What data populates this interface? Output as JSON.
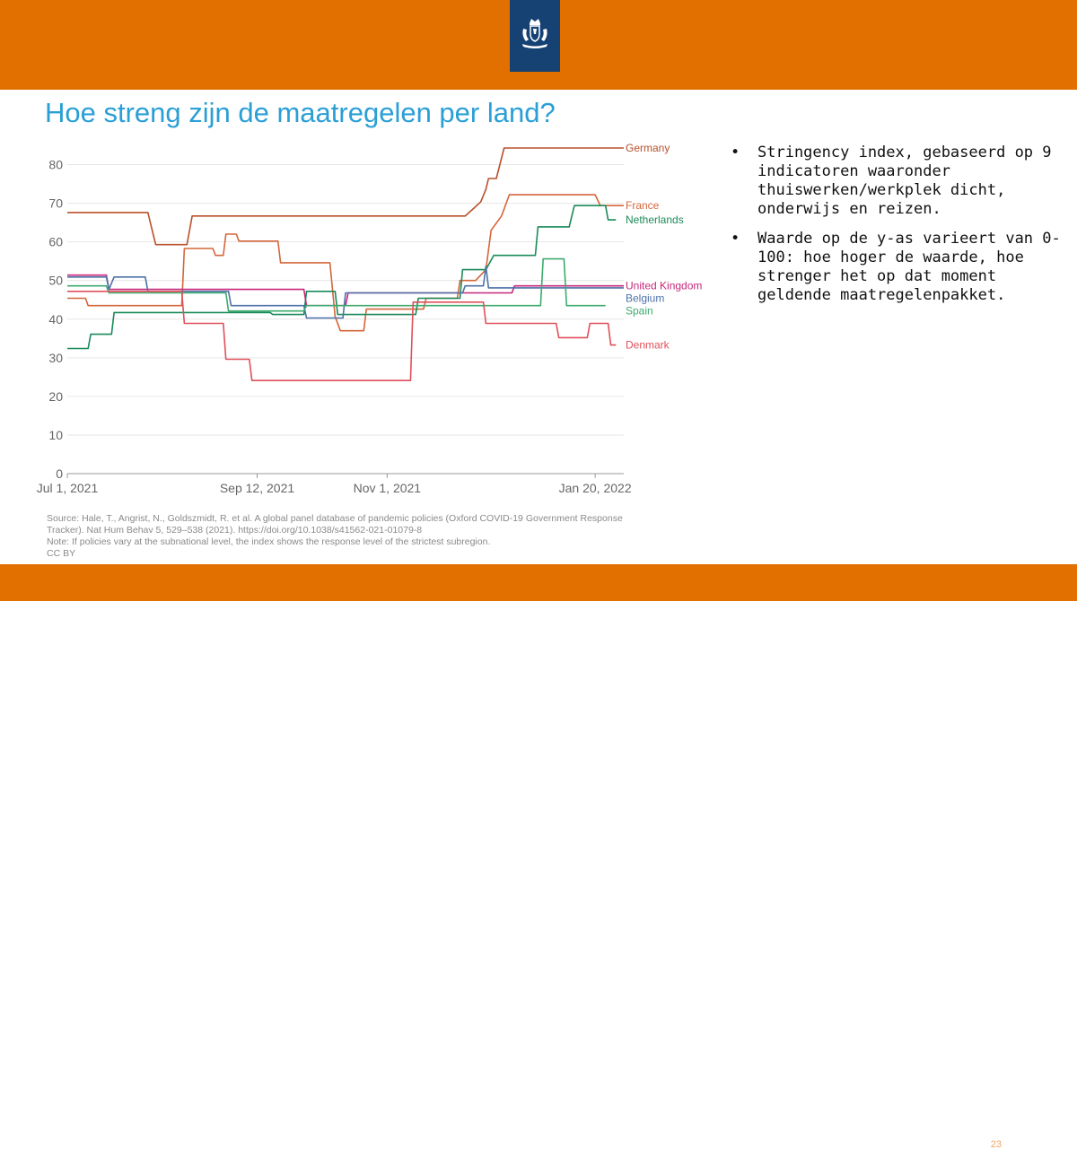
{
  "slide": {
    "title": "Hoe streng zijn de maatregelen per land?",
    "page_number": "23"
  },
  "bullets": [
    {
      "marker": "•",
      "text": "Stringency index, gebaseerd op 9 indicatoren waaronder thuiswerken/werkplek dicht, onderwijs en reizen."
    },
    {
      "marker": "•",
      "text": "Waarde op de y-as varieert van 0-100: hoe hoger de waarde, hoe strenger het op dat moment geldende maatregelenpakket."
    }
  ],
  "source": {
    "lines": [
      "Source: Hale, T., Angrist, N., Goldszmidt, R. et al. A global panel database of pandemic policies (Oxford COVID-19 Government Response",
      "Tracker). Nat Hum Behav 5, 529–538 (2021). https://doi.org/10.1038/s41562-021-01079-8",
      "Note: If policies vary at the subnational level, the index shows the response level of the strictest subregion.",
      "CC BY"
    ]
  },
  "colors": {
    "header_band": "#e27000",
    "logo_background": "#154273",
    "title": "#2a9fd6"
  },
  "icons": {
    "logo": "coat-of-arms-icon"
  },
  "chart_data": {
    "type": "line",
    "title": "",
    "xlabel": "",
    "ylabel": "",
    "x_start": "2021-07-01",
    "x_end": "2022-01-31",
    "ylim": [
      0,
      85
    ],
    "yticks": [
      0,
      10,
      20,
      30,
      40,
      50,
      60,
      70,
      80
    ],
    "xticks": [
      {
        "label": "Jul 1, 2021",
        "date": "2021-07-01"
      },
      {
        "label": "Sep 12, 2021",
        "date": "2021-09-12"
      },
      {
        "label": "Nov 1, 2021",
        "date": "2021-11-01"
      },
      {
        "label": "Jan 20, 2022",
        "date": "2022-01-20"
      }
    ],
    "grid": true,
    "legend": "inline labels at right end of lines",
    "series": [
      {
        "name": "Germany",
        "color": "#b8502b",
        "points": [
          [
            "2021-07-01",
            67.6
          ],
          [
            "2021-08-01",
            67.6
          ],
          [
            "2021-08-02",
            64.8
          ],
          [
            "2021-08-04",
            59.3
          ],
          [
            "2021-08-16",
            59.3
          ],
          [
            "2021-08-18",
            66.7
          ],
          [
            "2021-12-01",
            66.7
          ],
          [
            "2021-12-04",
            68.5
          ],
          [
            "2021-12-07",
            70.4
          ],
          [
            "2021-12-09",
            73.6
          ],
          [
            "2021-12-10",
            76.4
          ],
          [
            "2021-12-13",
            76.4
          ],
          [
            "2021-12-16",
            84.3
          ],
          [
            "2022-01-31",
            84.3
          ]
        ]
      },
      {
        "name": "France",
        "color": "#d4663a",
        "points": [
          [
            "2021-07-01",
            45.4
          ],
          [
            "2021-07-08",
            45.4
          ],
          [
            "2021-07-09",
            43.5
          ],
          [
            "2021-08-14",
            43.5
          ],
          [
            "2021-08-15",
            58.3
          ],
          [
            "2021-08-26",
            58.3
          ],
          [
            "2021-08-27",
            56.5
          ],
          [
            "2021-08-30",
            56.5
          ],
          [
            "2021-08-31",
            62.0
          ],
          [
            "2021-09-04",
            62.0
          ],
          [
            "2021-09-05",
            60.2
          ],
          [
            "2021-09-20",
            60.2
          ],
          [
            "2021-09-21",
            54.6
          ],
          [
            "2021-10-10",
            54.6
          ],
          [
            "2021-10-12",
            40.7
          ],
          [
            "2021-10-14",
            37.0
          ],
          [
            "2021-10-23",
            37.0
          ],
          [
            "2021-10-24",
            42.6
          ],
          [
            "2021-11-15",
            42.6
          ],
          [
            "2021-11-16",
            45.4
          ],
          [
            "2021-11-28",
            45.4
          ],
          [
            "2021-11-29",
            50.0
          ],
          [
            "2021-12-05",
            50.0
          ],
          [
            "2021-12-09",
            52.8
          ],
          [
            "2021-12-11",
            63.0
          ],
          [
            "2021-12-15",
            66.7
          ],
          [
            "2021-12-18",
            72.2
          ],
          [
            "2022-01-20",
            72.2
          ],
          [
            "2022-01-22",
            69.4
          ],
          [
            "2022-01-31",
            69.4
          ]
        ]
      },
      {
        "name": "Netherlands",
        "color": "#1a8a5a",
        "points": [
          [
            "2021-07-01",
            32.4
          ],
          [
            "2021-07-09",
            32.4
          ],
          [
            "2021-07-10",
            36.1
          ],
          [
            "2021-07-18",
            36.1
          ],
          [
            "2021-07-19",
            41.7
          ],
          [
            "2021-09-17",
            41.7
          ],
          [
            "2021-09-18",
            41.2
          ],
          [
            "2021-09-30",
            41.2
          ],
          [
            "2021-10-01",
            47.2
          ],
          [
            "2021-10-12",
            47.2
          ],
          [
            "2021-10-13",
            41.2
          ],
          [
            "2021-11-12",
            41.2
          ],
          [
            "2021-11-13",
            45.4
          ],
          [
            "2021-11-29",
            45.4
          ],
          [
            "2021-11-30",
            52.8
          ],
          [
            "2021-12-09",
            52.8
          ],
          [
            "2021-12-12",
            56.5
          ],
          [
            "2021-12-28",
            56.5
          ],
          [
            "2021-12-29",
            63.9
          ],
          [
            "2022-01-10",
            63.9
          ],
          [
            "2022-01-12",
            69.4
          ],
          [
            "2022-01-24",
            69.4
          ],
          [
            "2022-01-25",
            65.7
          ],
          [
            "2022-01-28",
            65.7
          ]
        ]
      },
      {
        "name": "United Kingdom",
        "color": "#c8267a",
        "points": [
          [
            "2021-07-01",
            51.4
          ],
          [
            "2021-07-16",
            51.4
          ],
          [
            "2021-07-17",
            47.7
          ],
          [
            "2021-09-30",
            47.7
          ],
          [
            "2021-10-01",
            43.5
          ],
          [
            "2021-10-16",
            43.5
          ],
          [
            "2021-10-17",
            46.8
          ],
          [
            "2021-12-19",
            46.8
          ],
          [
            "2021-12-20",
            48.6
          ],
          [
            "2022-01-31",
            48.6
          ]
        ]
      },
      {
        "name": "Belgium",
        "color": "#4d72a8",
        "points": [
          [
            "2021-07-01",
            50.9
          ],
          [
            "2021-07-16",
            50.9
          ],
          [
            "2021-07-17",
            47.7
          ],
          [
            "2021-07-19",
            50.9
          ],
          [
            "2021-07-31",
            50.9
          ],
          [
            "2021-08-01",
            47.2
          ],
          [
            "2021-09-01",
            47.2
          ],
          [
            "2021-09-02",
            43.5
          ],
          [
            "2021-09-30",
            43.5
          ],
          [
            "2021-10-01",
            40.3
          ],
          [
            "2021-10-15",
            40.3
          ],
          [
            "2021-10-16",
            46.8
          ],
          [
            "2021-11-30",
            46.8
          ],
          [
            "2021-12-01",
            48.6
          ],
          [
            "2021-12-08",
            48.6
          ],
          [
            "2021-12-09",
            53.7
          ],
          [
            "2021-12-10",
            48.1
          ],
          [
            "2022-01-31",
            48.1
          ]
        ]
      },
      {
        "name": "Spain",
        "color": "#3daa6d",
        "points": [
          [
            "2021-07-01",
            48.6
          ],
          [
            "2021-07-16",
            48.6
          ],
          [
            "2021-07-17",
            46.8
          ],
          [
            "2021-08-31",
            46.8
          ],
          [
            "2021-09-01",
            42.1
          ],
          [
            "2021-09-30",
            42.1
          ],
          [
            "2021-10-01",
            43.5
          ],
          [
            "2021-12-30",
            43.5
          ],
          [
            "2021-12-31",
            55.6
          ],
          [
            "2022-01-08",
            55.6
          ],
          [
            "2022-01-09",
            43.5
          ],
          [
            "2022-01-24",
            43.5
          ]
        ]
      },
      {
        "name": "Denmark",
        "color": "#e0505a",
        "points": [
          [
            "2021-07-01",
            47.2
          ],
          [
            "2021-08-14",
            47.2
          ],
          [
            "2021-08-15",
            38.9
          ],
          [
            "2021-08-30",
            38.9
          ],
          [
            "2021-08-31",
            29.6
          ],
          [
            "2021-09-09",
            29.6
          ],
          [
            "2021-09-10",
            24.1
          ],
          [
            "2021-11-10",
            24.1
          ],
          [
            "2021-11-11",
            44.4
          ],
          [
            "2021-12-08",
            44.4
          ],
          [
            "2021-12-09",
            38.9
          ],
          [
            "2022-01-05",
            38.9
          ],
          [
            "2022-01-06",
            35.2
          ],
          [
            "2022-01-17",
            35.2
          ],
          [
            "2022-01-18",
            38.9
          ],
          [
            "2022-01-25",
            38.9
          ],
          [
            "2022-01-26",
            33.3
          ],
          [
            "2022-01-28",
            33.3
          ]
        ]
      }
    ]
  }
}
